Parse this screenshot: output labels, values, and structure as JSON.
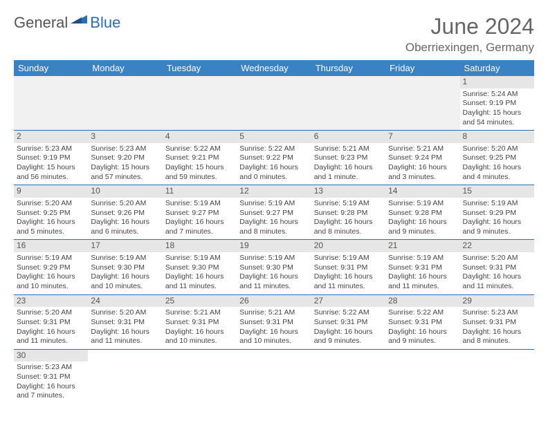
{
  "logo": {
    "textA": "General",
    "textB": "Blue",
    "color_blue": "#2a6db8",
    "color_gray": "#555555"
  },
  "title": "June 2024",
  "location": "Oberriexingen, Germany",
  "header_bg": "#3b82c4",
  "daynum_bg": "#e6e6e6",
  "border_color": "#2a6db8",
  "weekdays": [
    "Sunday",
    "Monday",
    "Tuesday",
    "Wednesday",
    "Thursday",
    "Friday",
    "Saturday"
  ],
  "days": [
    {
      "n": 1,
      "sr": "5:24 AM",
      "ss": "9:19 PM",
      "dl": "15 hours and 54 minutes."
    },
    {
      "n": 2,
      "sr": "5:23 AM",
      "ss": "9:19 PM",
      "dl": "15 hours and 56 minutes."
    },
    {
      "n": 3,
      "sr": "5:23 AM",
      "ss": "9:20 PM",
      "dl": "15 hours and 57 minutes."
    },
    {
      "n": 4,
      "sr": "5:22 AM",
      "ss": "9:21 PM",
      "dl": "15 hours and 59 minutes."
    },
    {
      "n": 5,
      "sr": "5:22 AM",
      "ss": "9:22 PM",
      "dl": "16 hours and 0 minutes."
    },
    {
      "n": 6,
      "sr": "5:21 AM",
      "ss": "9:23 PM",
      "dl": "16 hours and 1 minute."
    },
    {
      "n": 7,
      "sr": "5:21 AM",
      "ss": "9:24 PM",
      "dl": "16 hours and 3 minutes."
    },
    {
      "n": 8,
      "sr": "5:20 AM",
      "ss": "9:25 PM",
      "dl": "16 hours and 4 minutes."
    },
    {
      "n": 9,
      "sr": "5:20 AM",
      "ss": "9:25 PM",
      "dl": "16 hours and 5 minutes."
    },
    {
      "n": 10,
      "sr": "5:20 AM",
      "ss": "9:26 PM",
      "dl": "16 hours and 6 minutes."
    },
    {
      "n": 11,
      "sr": "5:19 AM",
      "ss": "9:27 PM",
      "dl": "16 hours and 7 minutes."
    },
    {
      "n": 12,
      "sr": "5:19 AM",
      "ss": "9:27 PM",
      "dl": "16 hours and 8 minutes."
    },
    {
      "n": 13,
      "sr": "5:19 AM",
      "ss": "9:28 PM",
      "dl": "16 hours and 8 minutes."
    },
    {
      "n": 14,
      "sr": "5:19 AM",
      "ss": "9:28 PM",
      "dl": "16 hours and 9 minutes."
    },
    {
      "n": 15,
      "sr": "5:19 AM",
      "ss": "9:29 PM",
      "dl": "16 hours and 9 minutes."
    },
    {
      "n": 16,
      "sr": "5:19 AM",
      "ss": "9:29 PM",
      "dl": "16 hours and 10 minutes."
    },
    {
      "n": 17,
      "sr": "5:19 AM",
      "ss": "9:30 PM",
      "dl": "16 hours and 10 minutes."
    },
    {
      "n": 18,
      "sr": "5:19 AM",
      "ss": "9:30 PM",
      "dl": "16 hours and 11 minutes."
    },
    {
      "n": 19,
      "sr": "5:19 AM",
      "ss": "9:30 PM",
      "dl": "16 hours and 11 minutes."
    },
    {
      "n": 20,
      "sr": "5:19 AM",
      "ss": "9:31 PM",
      "dl": "16 hours and 11 minutes."
    },
    {
      "n": 21,
      "sr": "5:19 AM",
      "ss": "9:31 PM",
      "dl": "16 hours and 11 minutes."
    },
    {
      "n": 22,
      "sr": "5:20 AM",
      "ss": "9:31 PM",
      "dl": "16 hours and 11 minutes."
    },
    {
      "n": 23,
      "sr": "5:20 AM",
      "ss": "9:31 PM",
      "dl": "16 hours and 11 minutes."
    },
    {
      "n": 24,
      "sr": "5:20 AM",
      "ss": "9:31 PM",
      "dl": "16 hours and 11 minutes."
    },
    {
      "n": 25,
      "sr": "5:21 AM",
      "ss": "9:31 PM",
      "dl": "16 hours and 10 minutes."
    },
    {
      "n": 26,
      "sr": "5:21 AM",
      "ss": "9:31 PM",
      "dl": "16 hours and 10 minutes."
    },
    {
      "n": 27,
      "sr": "5:22 AM",
      "ss": "9:31 PM",
      "dl": "16 hours and 9 minutes."
    },
    {
      "n": 28,
      "sr": "5:22 AM",
      "ss": "9:31 PM",
      "dl": "16 hours and 9 minutes."
    },
    {
      "n": 29,
      "sr": "5:23 AM",
      "ss": "9:31 PM",
      "dl": "16 hours and 8 minutes."
    },
    {
      "n": 30,
      "sr": "5:23 AM",
      "ss": "9:31 PM",
      "dl": "16 hours and 7 minutes."
    }
  ],
  "first_weekday_index": 6,
  "labels": {
    "sunrise": "Sunrise:",
    "sunset": "Sunset:",
    "daylight": "Daylight:"
  }
}
